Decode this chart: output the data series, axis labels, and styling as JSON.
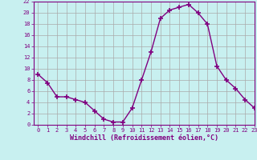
{
  "x": [
    0,
    1,
    2,
    3,
    4,
    5,
    6,
    7,
    8,
    9,
    10,
    11,
    12,
    13,
    14,
    15,
    16,
    17,
    18,
    19,
    20,
    21,
    22,
    23
  ],
  "y": [
    9,
    7.5,
    5,
    5,
    4.5,
    4,
    2.5,
    1,
    0.5,
    0.5,
    3,
    8,
    13,
    19,
    20.5,
    21,
    21.5,
    20,
    18,
    10.5,
    8,
    6.5,
    4.5,
    3
  ],
  "line_color": "#800080",
  "marker": "+",
  "marker_size": 4,
  "marker_lw": 1.2,
  "bg_color": "#c8f0f0",
  "grid_color": "#aaaaaa",
  "xlabel": "Windchill (Refroidissement éolien,°C)",
  "xlabel_color": "#800080",
  "ylim": [
    0,
    22
  ],
  "xlim": [
    -0.5,
    23
  ],
  "yticks": [
    0,
    2,
    4,
    6,
    8,
    10,
    12,
    14,
    16,
    18,
    20,
    22
  ],
  "xticks": [
    0,
    1,
    2,
    3,
    4,
    5,
    6,
    7,
    8,
    9,
    10,
    11,
    12,
    13,
    14,
    15,
    16,
    17,
    18,
    19,
    20,
    21,
    22,
    23
  ],
  "tick_color": "#800080",
  "tick_fontsize": 5,
  "xlabel_fontsize": 6,
  "spine_color": "#800080",
  "line_width": 1.0
}
